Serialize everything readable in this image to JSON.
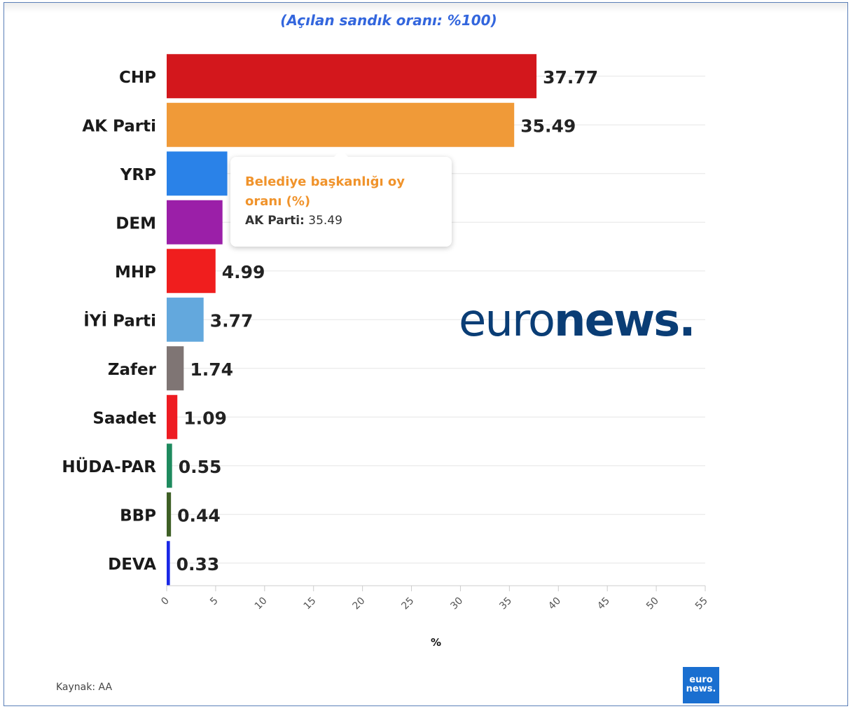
{
  "subtitle": "(Açılan sandık oranı: %100)",
  "chart_data": {
    "type": "bar",
    "orientation": "horizontal",
    "categories": [
      "CHP",
      "AK Parti",
      "YRP",
      "DEM",
      "MHP",
      "İYİ Parti",
      "Zafer",
      "Saadet",
      "HÜDA-PAR",
      "BBP",
      "DEVA"
    ],
    "values": [
      37.77,
      35.49,
      6.19,
      5.7,
      4.99,
      3.77,
      1.74,
      1.09,
      0.55,
      0.44,
      0.33
    ],
    "value_labels": [
      "37.77",
      "35.49",
      "",
      "",
      "4.99",
      "3.77",
      "1.74",
      "1.09",
      "0.55",
      "0.44",
      "0.33"
    ],
    "colors": [
      "#d3171c",
      "#f09a38",
      "#2a82e8",
      "#9b1fa8",
      "#f01e1e",
      "#63a8dd",
      "#7f7574",
      "#ee1c22",
      "#1e8a5e",
      "#3e5f25",
      "#1a28e6"
    ],
    "xlabel": "%",
    "ylabel": "",
    "xlim": [
      0,
      55
    ],
    "xticks": [
      0,
      5,
      10,
      15,
      20,
      25,
      30,
      35,
      40,
      45,
      50,
      55
    ],
    "grid": true
  },
  "tooltip": {
    "title": "Belediye başkanlığı oy oranı (%)",
    "series_label": "AK Parti:",
    "value": "35.49"
  },
  "watermark": {
    "light": "euro",
    "bold": "news."
  },
  "source": "Kaynak: AA",
  "logo": {
    "line1": "euro",
    "line2": "news."
  }
}
